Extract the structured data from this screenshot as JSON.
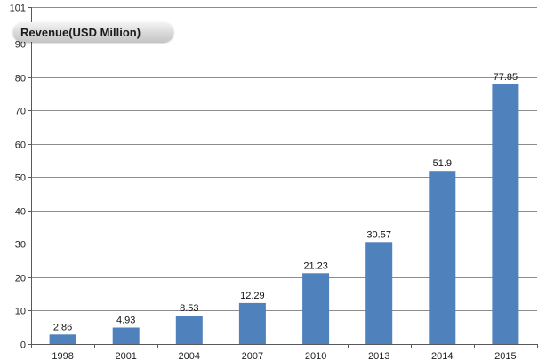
{
  "chart_data": {
    "type": "bar",
    "categories": [
      "1998",
      "2001",
      "2004",
      "2007",
      "2010",
      "2013",
      "2014",
      "2015"
    ],
    "series": [
      {
        "name": "Revenue(USD Million)",
        "values": [
          2.86,
          4.93,
          8.53,
          12.29,
          21.23,
          30.57,
          51.9,
          77.85
        ]
      }
    ],
    "value_labels": [
      "2.86",
      "4.93",
      "8.53",
      "12.29",
      "21.23",
      "30.57",
      "51.9",
      "77.85"
    ],
    "yticks": [
      0,
      10,
      20,
      30,
      40,
      50,
      60,
      70,
      80,
      90,
      101
    ],
    "ylim": [
      0,
      101
    ],
    "bar_color": "#4f81bd",
    "grid": true,
    "legend_position": "top-left",
    "xlabel": "",
    "ylabel": ""
  }
}
